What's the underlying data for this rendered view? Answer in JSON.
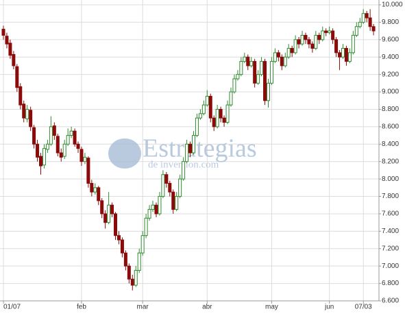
{
  "chart_data": {
    "type": "candlestick",
    "watermark": {
      "title": "Estrategias",
      "subtitle": "de inversion.com"
    },
    "up_color": "#2e8b2e",
    "down_color": "#8b0a0a",
    "grid": true,
    "ylim": [
      6600,
      10000
    ],
    "yticks": [
      {
        "value": 6600,
        "label": "6.600"
      },
      {
        "value": 6800,
        "label": "6.800"
      },
      {
        "value": 7000,
        "label": "7.000"
      },
      {
        "value": 7200,
        "label": "7.200"
      },
      {
        "value": 7400,
        "label": "7.400"
      },
      {
        "value": 7600,
        "label": "7.600"
      },
      {
        "value": 7800,
        "label": "7.800"
      },
      {
        "value": 8000,
        "label": "8.000"
      },
      {
        "value": 8200,
        "label": "8.200"
      },
      {
        "value": 8400,
        "label": "8.400"
      },
      {
        "value": 8600,
        "label": "8.600"
      },
      {
        "value": 8800,
        "label": "8.800"
      },
      {
        "value": 9000,
        "label": "9.000"
      },
      {
        "value": 9200,
        "label": "9.200"
      },
      {
        "value": 9400,
        "label": "9.400"
      },
      {
        "value": 9600,
        "label": "9.600"
      },
      {
        "value": 9800,
        "label": "9.800"
      },
      {
        "value": 10000,
        "label": "10.000"
      }
    ],
    "xlim": [
      -1,
      110
    ],
    "xticks": [
      {
        "value": 0,
        "label": "01/07"
      },
      {
        "value": 23,
        "label": "feb"
      },
      {
        "value": 41,
        "label": "mar"
      },
      {
        "value": 60,
        "label": "abr"
      },
      {
        "value": 79,
        "label": "may"
      },
      {
        "value": 96,
        "label": "jun"
      },
      {
        "value": 106,
        "label": "07/03"
      }
    ],
    "candles": [
      [
        9720,
        9760,
        9600,
        9650
      ],
      [
        9640,
        9680,
        9500,
        9550
      ],
      [
        9560,
        9600,
        9380,
        9420
      ],
      [
        9430,
        9470,
        9260,
        9300
      ],
      [
        9290,
        9320,
        9000,
        9050
      ],
      [
        9060,
        9100,
        8800,
        8850
      ],
      [
        8860,
        8900,
        8650,
        8700
      ],
      [
        8690,
        8850,
        8650,
        8800
      ],
      [
        8790,
        8830,
        8550,
        8600
      ],
      [
        8590,
        8620,
        8350,
        8400
      ],
      [
        8400,
        8450,
        8200,
        8250
      ],
      [
        8260,
        8300,
        8050,
        8150
      ],
      [
        8160,
        8400,
        8120,
        8350
      ],
      [
        8340,
        8450,
        8300,
        8400
      ],
      [
        8400,
        8720,
        8380,
        8600
      ],
      [
        8610,
        8650,
        8450,
        8500
      ],
      [
        8490,
        8520,
        8260,
        8300
      ],
      [
        8300,
        8350,
        8200,
        8250
      ],
      [
        8260,
        8450,
        8230,
        8400
      ],
      [
        8400,
        8580,
        8380,
        8500
      ],
      [
        8500,
        8600,
        8470,
        8550
      ],
      [
        8550,
        8580,
        8370,
        8400
      ],
      [
        8400,
        8430,
        8300,
        8350
      ],
      [
        8340,
        8370,
        8150,
        8200
      ],
      [
        8200,
        8300,
        8170,
        8250
      ],
      [
        8240,
        8260,
        7900,
        7950
      ],
      [
        7950,
        7990,
        7800,
        7850
      ],
      [
        7850,
        7950,
        7820,
        7900
      ],
      [
        7900,
        7920,
        7700,
        7750
      ],
      [
        7750,
        7780,
        7550,
        7600
      ],
      [
        7600,
        7640,
        7430,
        7500
      ],
      [
        7500,
        7850,
        7480,
        7700
      ],
      [
        7700,
        7730,
        7560,
        7600
      ],
      [
        7600,
        7620,
        7300,
        7350
      ],
      [
        7350,
        7400,
        7250,
        7300
      ],
      [
        7300,
        7330,
        7100,
        7150
      ],
      [
        7150,
        7180,
        6950,
        7000
      ],
      [
        7000,
        7030,
        6800,
        6850
      ],
      [
        6850,
        6900,
        6720,
        6780
      ],
      [
        6780,
        7000,
        6760,
        6950
      ],
      [
        6950,
        7200,
        6920,
        7150
      ],
      [
        7150,
        7400,
        7120,
        7350
      ],
      [
        7350,
        7600,
        7320,
        7550
      ],
      [
        7550,
        7700,
        7520,
        7650
      ],
      [
        7650,
        7750,
        7620,
        7700
      ],
      [
        7700,
        7730,
        7560,
        7600
      ],
      [
        7600,
        7850,
        7580,
        7800
      ],
      [
        7800,
        8100,
        7780,
        8050
      ],
      [
        8050,
        8080,
        7900,
        7950
      ],
      [
        7950,
        7980,
        7800,
        7850
      ],
      [
        7850,
        7880,
        7600,
        7650
      ],
      [
        7650,
        7850,
        7630,
        7800
      ],
      [
        7800,
        8050,
        7780,
        8000
      ],
      [
        8000,
        8250,
        7980,
        8200
      ],
      [
        8200,
        8450,
        8180,
        8400
      ],
      [
        8400,
        8430,
        8250,
        8300
      ],
      [
        8300,
        8550,
        8280,
        8500
      ],
      [
        8500,
        8750,
        8480,
        8700
      ],
      [
        8700,
        8800,
        8680,
        8750
      ],
      [
        8750,
        8900,
        8730,
        8850
      ],
      [
        8850,
        9020,
        8830,
        8950
      ],
      [
        8950,
        8980,
        8650,
        8700
      ],
      [
        8700,
        8730,
        8550,
        8600
      ],
      [
        8600,
        8850,
        8580,
        8800
      ],
      [
        8800,
        8830,
        8650,
        8700
      ],
      [
        8700,
        8730,
        8600,
        8650
      ],
      [
        8650,
        8900,
        8630,
        8850
      ],
      [
        8850,
        9050,
        8830,
        9000
      ],
      [
        9000,
        9200,
        8980,
        9150
      ],
      [
        9150,
        9250,
        9130,
        9200
      ],
      [
        9200,
        9400,
        9180,
        9350
      ],
      [
        9350,
        9450,
        9330,
        9400
      ],
      [
        9400,
        9430,
        9250,
        9300
      ],
      [
        9300,
        9400,
        9280,
        9350
      ],
      [
        9350,
        9380,
        9050,
        9100
      ],
      [
        9100,
        9250,
        9080,
        9200
      ],
      [
        9200,
        9400,
        9180,
        9350
      ],
      [
        9350,
        9380,
        8850,
        8900
      ],
      [
        8900,
        9150,
        8820,
        9100
      ],
      [
        9100,
        9400,
        9080,
        9350
      ],
      [
        9350,
        9500,
        9330,
        9450
      ],
      [
        9450,
        9480,
        9350,
        9400
      ],
      [
        9400,
        9430,
        9250,
        9300
      ],
      [
        9300,
        9450,
        9280,
        9400
      ],
      [
        9400,
        9550,
        9380,
        9500
      ],
      [
        9500,
        9530,
        9400,
        9450
      ],
      [
        9450,
        9650,
        9430,
        9600
      ],
      [
        9600,
        9630,
        9500,
        9550
      ],
      [
        9550,
        9700,
        9530,
        9650
      ],
      [
        9650,
        9680,
        9550,
        9600
      ],
      [
        9600,
        9630,
        9500,
        9550
      ],
      [
        9550,
        9580,
        9450,
        9500
      ],
      [
        9500,
        9700,
        9480,
        9650
      ],
      [
        9650,
        9680,
        9550,
        9600
      ],
      [
        9600,
        9750,
        9580,
        9700
      ],
      [
        9700,
        9730,
        9640,
        9680
      ],
      [
        9680,
        9750,
        9660,
        9700
      ],
      [
        9700,
        9730,
        9550,
        9600
      ],
      [
        9600,
        9630,
        9400,
        9450
      ],
      [
        9450,
        9480,
        9250,
        9400
      ],
      [
        9400,
        9550,
        9380,
        9500
      ],
      [
        9500,
        9530,
        9300,
        9350
      ],
      [
        9350,
        9500,
        9330,
        9450
      ],
      [
        9450,
        9700,
        9430,
        9650
      ],
      [
        9650,
        9800,
        9630,
        9750
      ],
      [
        9750,
        9850,
        9730,
        9800
      ],
      [
        9800,
        9950,
        9780,
        9900
      ],
      [
        9900,
        9930,
        9800,
        9850
      ],
      [
        9850,
        9950,
        9700,
        9750
      ],
      [
        9750,
        9780,
        9650,
        9700
      ]
    ]
  }
}
